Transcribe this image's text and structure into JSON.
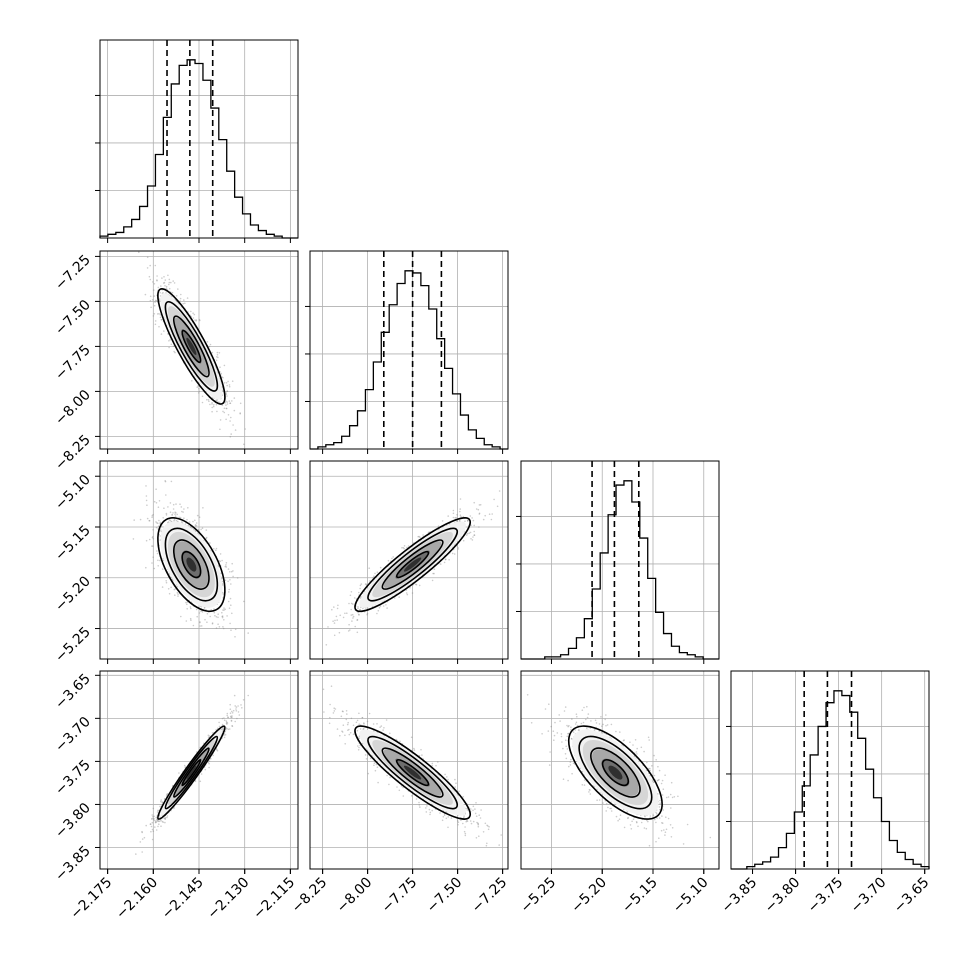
{
  "chart_data": {
    "type": "corner",
    "colors": {
      "frame": "#000000",
      "grid": "#b0b0b0",
      "hist": "#000000",
      "quantile": "#000000",
      "samples": "#8f8f8f"
    },
    "grid": true,
    "quantiles": [
      0.16,
      0.5,
      0.84
    ],
    "parameters": [
      {
        "mean": -2.1475,
        "sd": 0.0055,
        "range": [
          -2.1775,
          -2.1125
        ],
        "ticks": [
          -2.175,
          -2.16,
          -2.145,
          -2.13,
          -2.115
        ],
        "tick_labels": [
          "−2.175",
          "−2.160",
          "−2.145",
          "−2.130",
          "−2.115"
        ],
        "quantile_values": [
          -2.1555,
          -2.148,
          -2.1405
        ]
      },
      {
        "mean": -7.75,
        "sd": 0.16,
        "range": [
          -8.32,
          -7.22
        ],
        "ticks": [
          -8.25,
          -8.0,
          -7.75,
          -7.5,
          -7.25
        ],
        "tick_labels": [
          "−8.25",
          "−8.00",
          "−7.75",
          "−7.50",
          "−7.25"
        ],
        "quantile_values": [
          -7.91,
          -7.75,
          -7.59
        ]
      },
      {
        "mean": -5.187,
        "sd": 0.023,
        "range": [
          -5.28,
          -5.085
        ],
        "ticks": [
          -5.25,
          -5.2,
          -5.15,
          -5.1
        ],
        "tick_labels": [
          "−5.25",
          "−5.20",
          "−5.15",
          "−5.10"
        ],
        "quantile_values": [
          -5.21,
          -5.188,
          -5.164
        ]
      },
      {
        "mean": -3.763,
        "sd": 0.027,
        "range": [
          -3.875,
          -3.645
        ],
        "ticks": [
          -3.85,
          -3.8,
          -3.75,
          -3.7,
          -3.65
        ],
        "tick_labels": [
          "−3.85",
          "−3.80",
          "−3.75",
          "−3.70",
          "−3.65"
        ],
        "quantile_values": [
          -3.79,
          -3.763,
          -3.735
        ]
      }
    ],
    "histograms": [
      {
        "counts": [
          1,
          2,
          3,
          6,
          10,
          17,
          28,
          45,
          65,
          83,
          93,
          96,
          94,
          85,
          70,
          53,
          36,
          22,
          13,
          7,
          4,
          2,
          1,
          0,
          0
        ]
      },
      {
        "counts": [
          0,
          1,
          2,
          3,
          6,
          11,
          18,
          28,
          41,
          55,
          68,
          78,
          84,
          83,
          77,
          66,
          52,
          38,
          26,
          16,
          9,
          5,
          2,
          1,
          0
        ]
      },
      {
        "counts": [
          0,
          0,
          0,
          1,
          1,
          2,
          5,
          10,
          19,
          33,
          50,
          68,
          82,
          84,
          74,
          57,
          38,
          22,
          12,
          6,
          3,
          2,
          1,
          0,
          0
        ]
      },
      {
        "counts": [
          0,
          0,
          1,
          2,
          3,
          5,
          9,
          15,
          24,
          35,
          48,
          60,
          70,
          75,
          73,
          66,
          55,
          42,
          30,
          20,
          12,
          7,
          4,
          2,
          1
        ]
      }
    ],
    "correlations": [
      {
        "x": 0,
        "y": 1,
        "r": -0.88
      },
      {
        "x": 0,
        "y": 2,
        "r": -0.55
      },
      {
        "x": 1,
        "y": 2,
        "r": 0.91
      },
      {
        "x": 0,
        "y": 3,
        "r": 0.97
      },
      {
        "x": 1,
        "y": 3,
        "r": -0.9
      },
      {
        "x": 2,
        "y": 3,
        "r": -0.68
      }
    ]
  }
}
